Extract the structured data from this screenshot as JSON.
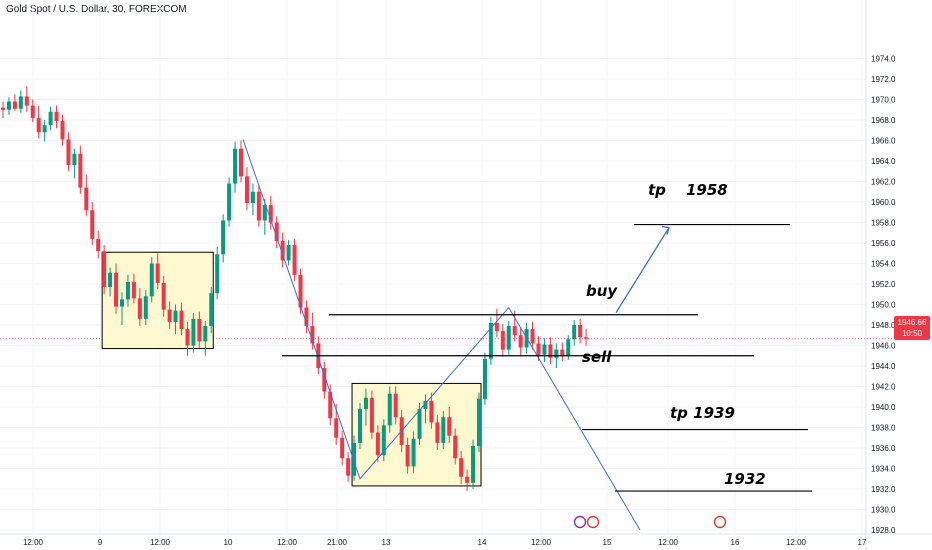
{
  "header": {
    "title": "Gold Spot / U.S. Dollar, 30, FOREXCOM"
  },
  "price_tag": {
    "price": "1946.66",
    "countdown": "10:50"
  },
  "colors": {
    "up": "#089981",
    "down": "#f23645",
    "box_fill": "#fff9d1",
    "wave": "#3b6fd0"
  },
  "annotations": {
    "buy": "buy",
    "sell": "sell",
    "tp1": "tp",
    "tp1_value": "1958",
    "tp2": "tp  1939",
    "target": "1932"
  },
  "chart_data": {
    "type": "candlestick",
    "title": "Gold Spot / U.S. Dollar, 30, FOREXCOM",
    "y_range": [
      1928,
      1975
    ],
    "y_ticks": [
      1928,
      1930,
      1932,
      1934,
      1936,
      1938,
      1940,
      1942,
      1944,
      1946,
      1948,
      1950,
      1952,
      1954,
      1956,
      1958,
      1960,
      1962,
      1964,
      1966,
      1968,
      1970,
      1972,
      1974
    ],
    "x_ticks": [
      "12:00",
      "9",
      "12:00",
      "10",
      "12:00",
      "21:00",
      "13",
      "14",
      "12:00",
      "15",
      "12:00",
      "16",
      "12:00",
      "17"
    ],
    "current_price": 1946.66,
    "levels": [
      {
        "label": "buy",
        "price": 1949.0
      },
      {
        "label": "sell",
        "price": 1945.0
      },
      {
        "label": "tp 1958",
        "price": 1957.8
      },
      {
        "label": "tp 1939",
        "price": 1937.8
      },
      {
        "label": "1932",
        "price": 1931.8
      }
    ],
    "range_boxes": [
      {
        "from_bar": 17,
        "to_bar": 35,
        "low": 1945.7,
        "high": 1955.1
      },
      {
        "from_bar": 59,
        "to_bar": 80,
        "low": 1932.3,
        "high": 1942.3
      }
    ],
    "wave_path": [
      [
        1966.1
      ],
      [
        1933.0
      ],
      [
        1949.7
      ],
      [
        1928.0
      ]
    ],
    "candles": [
      [
        1969.2,
        1969.8,
        1968.2,
        1969.0
      ],
      [
        1969.0,
        1970.2,
        1968.5,
        1969.8
      ],
      [
        1969.8,
        1970.5,
        1968.9,
        1969.1
      ],
      [
        1969.1,
        1970.9,
        1968.7,
        1970.3
      ],
      [
        1970.3,
        1971.3,
        1968.8,
        1969.4
      ],
      [
        1969.4,
        1970.0,
        1967.8,
        1968.2
      ],
      [
        1968.2,
        1969.4,
        1966.2,
        1966.8
      ],
      [
        1966.8,
        1968.0,
        1965.9,
        1967.5
      ],
      [
        1967.5,
        1969.3,
        1967.0,
        1968.8
      ],
      [
        1968.8,
        1969.4,
        1967.2,
        1967.9
      ],
      [
        1967.9,
        1968.5,
        1965.5,
        1966.1
      ],
      [
        1966.1,
        1966.8,
        1963.0,
        1963.6
      ],
      [
        1963.6,
        1965.2,
        1962.3,
        1964.7
      ],
      [
        1964.7,
        1965.5,
        1960.8,
        1961.4
      ],
      [
        1961.4,
        1962.7,
        1958.6,
        1959.2
      ],
      [
        1959.2,
        1960.0,
        1955.8,
        1956.4
      ],
      [
        1956.4,
        1957.2,
        1954.5,
        1955.2
      ],
      [
        1955.2,
        1955.8,
        1951.0,
        1951.7
      ],
      [
        1951.7,
        1953.6,
        1950.8,
        1953.1
      ],
      [
        1953.1,
        1954.0,
        1949.1,
        1949.8
      ],
      [
        1949.8,
        1951.2,
        1948.0,
        1950.5
      ],
      [
        1950.5,
        1952.9,
        1949.8,
        1952.2
      ],
      [
        1952.2,
        1953.0,
        1950.1,
        1950.6
      ],
      [
        1950.6,
        1951.6,
        1947.9,
        1948.6
      ],
      [
        1948.6,
        1951.4,
        1948.0,
        1950.8
      ],
      [
        1950.8,
        1954.6,
        1950.2,
        1954.0
      ],
      [
        1954.0,
        1955.0,
        1951.5,
        1952.1
      ],
      [
        1952.1,
        1952.8,
        1948.8,
        1949.5
      ],
      [
        1949.5,
        1950.3,
        1947.6,
        1948.3
      ],
      [
        1948.3,
        1950.0,
        1947.1,
        1949.4
      ],
      [
        1949.4,
        1950.2,
        1947.0,
        1947.6
      ],
      [
        1947.6,
        1948.3,
        1945.0,
        1946.0
      ],
      [
        1946.0,
        1949.2,
        1945.3,
        1948.6
      ],
      [
        1948.6,
        1949.3,
        1945.8,
        1946.4
      ],
      [
        1946.4,
        1948.4,
        1945.0,
        1947.9
      ],
      [
        1947.9,
        1951.7,
        1947.2,
        1951.1
      ],
      [
        1951.1,
        1955.6,
        1950.5,
        1954.9
      ],
      [
        1954.9,
        1958.8,
        1954.1,
        1958.2
      ],
      [
        1958.2,
        1962.4,
        1957.6,
        1961.8
      ],
      [
        1961.8,
        1965.9,
        1960.9,
        1965.2
      ],
      [
        1965.2,
        1966.0,
        1961.9,
        1962.5
      ],
      [
        1962.5,
        1963.4,
        1959.2,
        1959.9
      ],
      [
        1959.9,
        1961.8,
        1958.7,
        1961.0
      ],
      [
        1961.0,
        1961.7,
        1957.6,
        1958.2
      ],
      [
        1958.2,
        1960.3,
        1956.8,
        1959.7
      ],
      [
        1959.7,
        1960.6,
        1957.3,
        1958.0
      ],
      [
        1958.0,
        1958.6,
        1955.5,
        1956.2
      ],
      [
        1956.2,
        1957.0,
        1953.6,
        1954.3
      ],
      [
        1954.3,
        1956.3,
        1953.8,
        1955.8
      ],
      [
        1955.8,
        1956.4,
        1952.3,
        1952.9
      ],
      [
        1952.9,
        1953.5,
        1949.1,
        1949.7
      ],
      [
        1949.7,
        1950.4,
        1947.2,
        1947.9
      ],
      [
        1947.9,
        1949.2,
        1945.6,
        1946.2
      ],
      [
        1946.2,
        1946.9,
        1943.2,
        1943.8
      ],
      [
        1943.8,
        1944.4,
        1940.8,
        1941.5
      ],
      [
        1941.5,
        1942.2,
        1938.2,
        1938.9
      ],
      [
        1938.9,
        1940.3,
        1936.3,
        1937.0
      ],
      [
        1937.0,
        1937.7,
        1934.3,
        1935.0
      ],
      [
        1935.0,
        1935.6,
        1932.7,
        1933.3
      ],
      [
        1933.3,
        1937.2,
        1932.8,
        1936.5
      ],
      [
        1936.5,
        1940.4,
        1935.9,
        1939.8
      ],
      [
        1939.8,
        1941.8,
        1938.2,
        1940.9
      ],
      [
        1940.9,
        1941.6,
        1936.9,
        1937.5
      ],
      [
        1937.5,
        1938.2,
        1934.6,
        1935.3
      ],
      [
        1935.3,
        1938.8,
        1934.7,
        1938.2
      ],
      [
        1938.2,
        1942.0,
        1937.5,
        1941.3
      ],
      [
        1941.3,
        1942.0,
        1938.3,
        1939.0
      ],
      [
        1939.0,
        1939.7,
        1935.6,
        1936.3
      ],
      [
        1936.3,
        1937.0,
        1933.5,
        1934.2
      ],
      [
        1934.2,
        1937.6,
        1933.6,
        1936.9
      ],
      [
        1936.9,
        1940.4,
        1936.3,
        1939.8
      ],
      [
        1939.8,
        1941.2,
        1938.4,
        1940.6
      ],
      [
        1940.6,
        1941.4,
        1937.9,
        1938.5
      ],
      [
        1938.5,
        1939.2,
        1935.8,
        1936.5
      ],
      [
        1936.5,
        1939.6,
        1935.9,
        1939.0
      ],
      [
        1939.0,
        1940.0,
        1936.5,
        1937.2
      ],
      [
        1937.2,
        1937.9,
        1934.4,
        1935.0
      ],
      [
        1935.0,
        1935.7,
        1932.5,
        1933.2
      ],
      [
        1933.2,
        1933.9,
        1931.8,
        1932.6
      ],
      [
        1932.6,
        1936.8,
        1932.0,
        1936.2
      ],
      [
        1936.2,
        1941.4,
        1935.6,
        1940.8
      ],
      [
        1940.8,
        1945.3,
        1940.2,
        1944.7
      ],
      [
        1944.7,
        1948.8,
        1944.1,
        1948.2
      ],
      [
        1948.2,
        1949.6,
        1946.8,
        1947.4
      ],
      [
        1947.4,
        1948.1,
        1944.9,
        1945.6
      ],
      [
        1945.6,
        1948.4,
        1945.1,
        1947.9
      ],
      [
        1947.9,
        1949.4,
        1946.4,
        1947.0
      ],
      [
        1947.0,
        1947.7,
        1945.0,
        1945.8
      ],
      [
        1945.8,
        1948.2,
        1945.2,
        1947.6
      ],
      [
        1947.6,
        1948.3,
        1945.6,
        1946.2
      ],
      [
        1946.2,
        1946.9,
        1944.5,
        1945.1
      ],
      [
        1945.1,
        1946.7,
        1944.4,
        1946.1
      ],
      [
        1946.1,
        1946.8,
        1944.2,
        1944.8
      ],
      [
        1944.8,
        1946.2,
        1943.8,
        1945.6
      ],
      [
        1945.6,
        1946.3,
        1944.5,
        1945.0
      ],
      [
        1945.0,
        1947.0,
        1944.6,
        1946.6
      ],
      [
        1946.6,
        1948.5,
        1946.0,
        1948.0
      ],
      [
        1948.0,
        1948.6,
        1946.2,
        1946.8
      ],
      [
        1946.8,
        1947.6,
        1946.0,
        1946.66
      ]
    ]
  }
}
